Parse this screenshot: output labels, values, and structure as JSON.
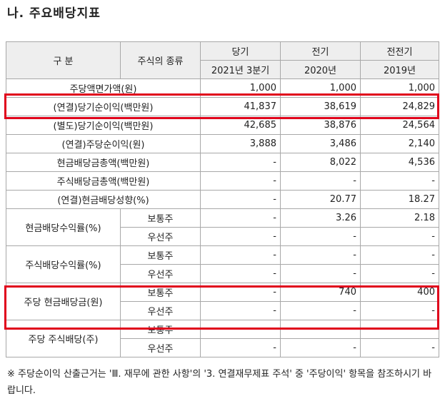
{
  "section_title": "나. 주요배당지표",
  "table": {
    "header": {
      "col_division": "구  분",
      "col_stock_type": "주식의 종류",
      "periods": [
        "당기",
        "전기",
        "전전기"
      ],
      "period_dates": [
        "2021년 3분기",
        "2020년",
        "2019년"
      ]
    },
    "rows": [
      {
        "label": "주당액면가액(원)",
        "values": [
          "1,000",
          "1,000",
          "1,000"
        ]
      },
      {
        "label": "(연결)당기순이익(백만원)",
        "values": [
          "41,837",
          "38,619",
          "24,829"
        ]
      },
      {
        "label": "(별도)당기순이익(백만원)",
        "values": [
          "42,685",
          "38,876",
          "24,564"
        ]
      },
      {
        "label": "(연결)주당순이익(원)",
        "values": [
          "3,888",
          "3,486",
          "2,140"
        ]
      },
      {
        "label": "현금배당금총액(백만원)",
        "values": [
          "-",
          "8,022",
          "4,536"
        ]
      },
      {
        "label": "주식배당금총액(백만원)",
        "values": [
          "-",
          "-",
          "-"
        ]
      },
      {
        "label": "(연결)현금배당성향(%)",
        "values": [
          "-",
          "20.77",
          "18.27"
        ]
      }
    ],
    "groups": [
      {
        "label": "현금배당수익률(%)",
        "sub": [
          {
            "type": "보통주",
            "values": [
              "-",
              "3.26",
              "2.18"
            ]
          },
          {
            "type": "우선주",
            "values": [
              "-",
              "-",
              "-"
            ]
          }
        ]
      },
      {
        "label": "주식배당수익률(%)",
        "sub": [
          {
            "type": "보통주",
            "values": [
              "-",
              "-",
              "-"
            ]
          },
          {
            "type": "우선주",
            "values": [
              "-",
              "-",
              "-"
            ]
          }
        ]
      },
      {
        "label": "주당 현금배당금(원)",
        "sub": [
          {
            "type": "보통주",
            "values": [
              "-",
              "740",
              "400"
            ]
          },
          {
            "type": "우선주",
            "values": [
              "-",
              "-",
              "-"
            ]
          }
        ]
      },
      {
        "label": "주당 주식배당(주)",
        "sub": [
          {
            "type": "보통주",
            "values": [
              "-",
              "-",
              "-"
            ]
          },
          {
            "type": "우선주",
            "values": [
              "-",
              "-",
              "-"
            ]
          }
        ]
      }
    ]
  },
  "footnote": "※ 주당순이익 산출근거는 'Ⅲ. 재무에 관한 사항'의 '3. 연결재무제표 주석' 중 '주당이익' 항목을 참조하시기 바랍니다.",
  "colors": {
    "highlight_box": "#e0001b",
    "header_bg": "#eeeeee",
    "border": "#a8a8a8"
  }
}
